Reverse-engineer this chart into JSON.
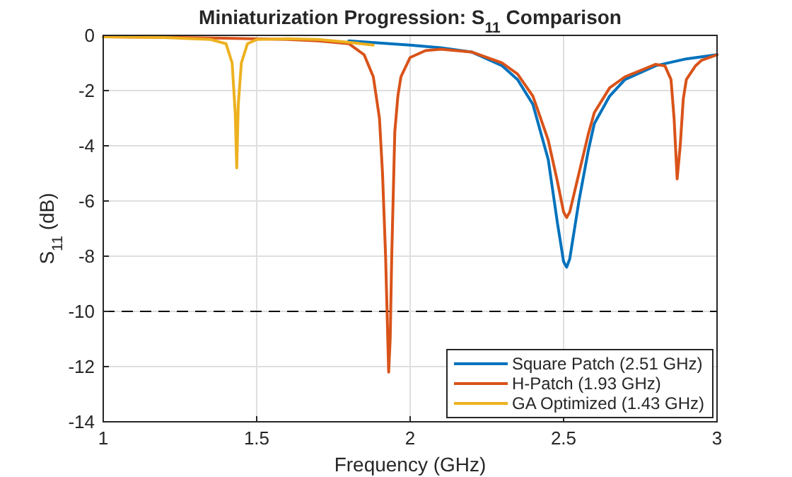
{
  "chart_data": {
    "type": "line",
    "title": "Miniaturization Progression: S$_{11}$ Comparison",
    "xlabel": "Frequency (GHz)",
    "ylabel": "S$_{11}$ (dB)",
    "xlim": [
      1,
      3
    ],
    "xticks": [
      1,
      1.5,
      2,
      2.5,
      3
    ],
    "ylim": [
      -14,
      0
    ],
    "yticks": [
      -14,
      -12,
      -10,
      -8,
      -6,
      -4,
      -2,
      0
    ],
    "grid": true,
    "legend": "bottom right",
    "line_style": "solid",
    "marker": "none",
    "ref_lines": [
      {
        "axis": "y",
        "value": -10,
        "color": "#000000",
        "line_style": "dashed"
      }
    ],
    "series": [
      {
        "name": "Square Patch (2.51 GHz)",
        "color": "#0072bd",
        "x": [
          1.8,
          2,
          2.1,
          2.2,
          2.3,
          2.35,
          2.4,
          2.45,
          2.48,
          2.5,
          2.51,
          2.52,
          2.55,
          2.58,
          2.6,
          2.65,
          2.7,
          2.8,
          2.9,
          3
        ],
        "values": [
          -0.2,
          -0.35,
          -0.45,
          -0.6,
          -1.1,
          -1.6,
          -2.5,
          -4.5,
          -6.8,
          -8.2,
          -8.4,
          -8.1,
          -6,
          -4.2,
          -3.2,
          -2.2,
          -1.6,
          -1.1,
          -0.85,
          -0.7
        ]
      },
      {
        "name": "H-Patch (1.93 GHz)",
        "color": "#d95319",
        "x": [
          1,
          1.2,
          1.4,
          1.6,
          1.7,
          1.8,
          1.85,
          1.88,
          1.9,
          1.91,
          1.92,
          1.93,
          1.935,
          1.94,
          1.95,
          1.96,
          1.97,
          2,
          2.05,
          2.1,
          2.2,
          2.3,
          2.35,
          2.4,
          2.45,
          2.48,
          2.5,
          2.51,
          2.52,
          2.55,
          2.58,
          2.6,
          2.65,
          2.7,
          2.8,
          2.83,
          2.85,
          2.86,
          2.87,
          2.88,
          2.89,
          2.9,
          2.93,
          2.95,
          3
        ],
        "values": [
          -0.05,
          -0.07,
          -0.1,
          -0.15,
          -0.2,
          -0.3,
          -0.7,
          -1.5,
          -3,
          -5,
          -8,
          -12.2,
          -11,
          -8,
          -3.5,
          -2.2,
          -1.5,
          -0.8,
          -0.55,
          -0.5,
          -0.6,
          -1,
          -1.4,
          -2.2,
          -3.8,
          -5.3,
          -6.4,
          -6.6,
          -6.4,
          -5,
          -3.6,
          -2.8,
          -1.9,
          -1.5,
          -1.05,
          -1.1,
          -1.6,
          -3,
          -5.2,
          -4,
          -2.3,
          -1.6,
          -1.1,
          -0.9,
          -0.7
        ]
      },
      {
        "name": "GA Optimized (1.43 GHz)",
        "color": "#edb120",
        "x": [
          1,
          1.2,
          1.35,
          1.4,
          1.42,
          1.43,
          1.435,
          1.44,
          1.45,
          1.47,
          1.5,
          1.6,
          1.7,
          1.8,
          1.88
        ],
        "values": [
          -0.05,
          -0.08,
          -0.15,
          -0.3,
          -1,
          -2.8,
          -4.8,
          -2.5,
          -1,
          -0.3,
          -0.15,
          -0.12,
          -0.15,
          -0.25,
          -0.35
        ]
      }
    ]
  }
}
